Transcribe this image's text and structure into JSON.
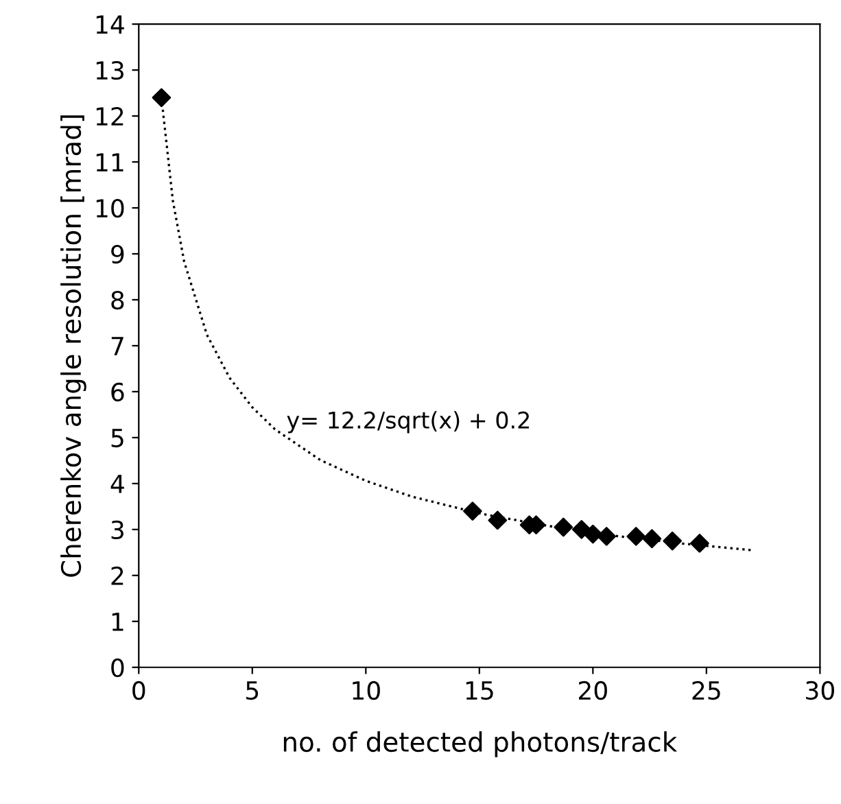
{
  "chart_data": {
    "type": "scatter",
    "xlabel": "no. of detected photons/track",
    "ylabel": "Cherenkov angle resolution [mrad]",
    "xlim": [
      0,
      30
    ],
    "ylim": [
      0,
      14
    ],
    "xticks": [
      0,
      5,
      10,
      15,
      20,
      25,
      30
    ],
    "yticks": [
      0,
      1,
      2,
      3,
      4,
      5,
      6,
      7,
      8,
      9,
      10,
      11,
      12,
      13,
      14
    ],
    "grid": false,
    "series": [
      {
        "color": "#000000",
        "marker": "diamond",
        "x": [
          1,
          14.7,
          15.8,
          17.2,
          17.5,
          18.7,
          19.5,
          20.0,
          20.6,
          21.9,
          22.6,
          23.5,
          24.7
        ],
        "values": [
          12.4,
          3.4,
          3.2,
          3.1,
          3.1,
          3.05,
          3.0,
          2.9,
          2.85,
          2.85,
          2.8,
          2.75,
          2.7
        ]
      },
      {
        "type": "line",
        "color": "#000000",
        "line_style": "dotted",
        "marker": "none",
        "x": [
          1,
          1.5,
          2,
          3,
          4,
          5,
          6,
          8,
          10,
          12,
          15,
          18,
          21,
          24,
          27
        ],
        "values": [
          12.4,
          10.16,
          8.83,
          7.24,
          6.3,
          5.66,
          5.18,
          4.51,
          4.06,
          3.72,
          3.35,
          3.08,
          2.86,
          2.69,
          2.55
        ]
      }
    ],
    "annotations": [
      {
        "text": "y= 12.2/sqrt(x) + 0.2",
        "x": 6.5,
        "y": 5.2
      }
    ]
  }
}
